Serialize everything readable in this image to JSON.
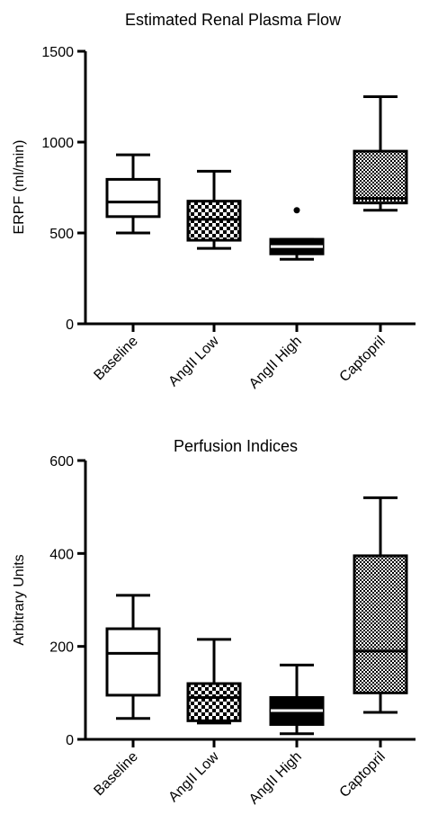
{
  "chart_data": [
    {
      "type": "box",
      "title": "Estimated Renal Plasma Flow",
      "ylabel": "ERPF (ml/min)",
      "xlabel": "",
      "ylim": [
        0,
        1500
      ],
      "yticks": [
        0,
        500,
        1000,
        1500
      ],
      "grid": false,
      "categories": [
        "Baseline",
        "AngII Low",
        "AngII High",
        "Captopril"
      ],
      "boxes": [
        {
          "whisker_low": 500,
          "q1": 590,
          "median": 670,
          "q3": 795,
          "whisker_high": 930,
          "outliers": [],
          "fill": "white"
        },
        {
          "whisker_low": 415,
          "q1": 460,
          "median": 575,
          "q3": 675,
          "whisker_high": 840,
          "outliers": [],
          "fill": "checker"
        },
        {
          "whisker_low": 355,
          "q1": 385,
          "median": 425,
          "q3": 465,
          "whisker_high": 465,
          "outliers": [
            625
          ],
          "fill": "black"
        },
        {
          "whisker_low": 625,
          "q1": 665,
          "median": 690,
          "q3": 950,
          "whisker_high": 1250,
          "outliers": [],
          "fill": "fine-checker"
        }
      ]
    },
    {
      "type": "box",
      "title": "Perfusion Indices",
      "ylabel": "Arbitrary Units",
      "xlabel": "",
      "ylim": [
        0,
        600
      ],
      "yticks": [
        0,
        200,
        400,
        600
      ],
      "grid": false,
      "categories": [
        "Baseline",
        "AngII Low",
        "AngII High",
        "Captopril"
      ],
      "boxes": [
        {
          "whisker_low": 45,
          "q1": 95,
          "median": 185,
          "q3": 238,
          "whisker_high": 310,
          "outliers": [],
          "fill": "white"
        },
        {
          "whisker_low": 35,
          "q1": 40,
          "median": 90,
          "q3": 120,
          "whisker_high": 215,
          "outliers": [],
          "fill": "checker"
        },
        {
          "whisker_low": 12,
          "q1": 32,
          "median": 62,
          "q3": 90,
          "whisker_high": 160,
          "outliers": [],
          "fill": "black"
        },
        {
          "whisker_low": 58,
          "q1": 100,
          "median": 190,
          "q3": 395,
          "whisker_high": 520,
          "outliers": [],
          "fill": "fine-checker"
        }
      ]
    }
  ]
}
